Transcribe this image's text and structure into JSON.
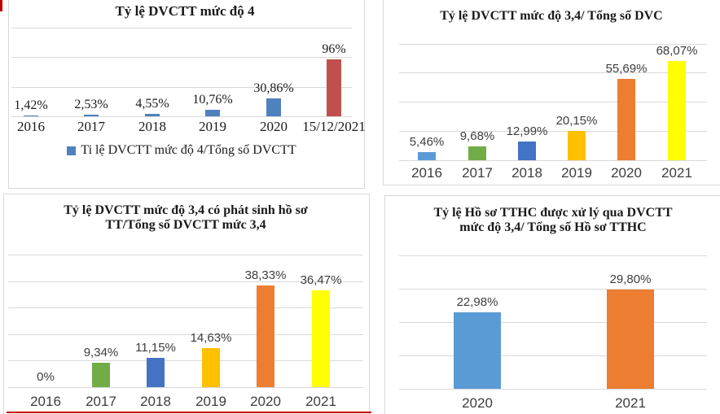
{
  "page": {
    "background": "#ffffff"
  },
  "accents": {
    "top_left_mark_color": "#c00000",
    "bottom_left_line_color": "#c00000"
  },
  "palette": {
    "blue_2007": "#4F81BD",
    "red_2007": "#C0504D",
    "light_blue": "#5B9BD5",
    "green": "#70AD47",
    "blue": "#4472C4",
    "gold": "#FFC000",
    "orange": "#ED7D31",
    "yellow": "#FFFF00",
    "gridline": "#d9d9d9"
  },
  "chart_data": [
    {
      "type": "bar",
      "title": "Tỷ lệ DVCTT mức độ 4",
      "title_lines": [
        "Tỷ lệ DVCTT mức độ 4"
      ],
      "categories": [
        "2016",
        "2017",
        "2018",
        "2019",
        "2020",
        "15/12/2021"
      ],
      "values": [
        1.42,
        2.53,
        4.55,
        10.76,
        30.86,
        96
      ],
      "value_labels": [
        "1,42%",
        "2,53%",
        "4,55%",
        "10,76%",
        "30,86%",
        "96%"
      ],
      "bar_colors": [
        "#4F81BD",
        "#4F81BD",
        "#4F81BD",
        "#4F81BD",
        "#4F81BD",
        "#C0504D"
      ],
      "legend": {
        "label": "Ti lệ DVCTT mức độ 4/Tổng số DVCTT",
        "marker_color": "#4F81BD",
        "position": "bottom"
      },
      "xlabel": "",
      "ylabel": "",
      "ylim": [
        0,
        150
      ],
      "gridlines_pct": [
        0,
        50,
        100,
        150
      ],
      "grid": true,
      "y_axis_visible": false
    },
    {
      "type": "bar",
      "title": "Tỷ lệ DVCTT mức độ 3,4/ Tổng số DVC",
      "title_lines": [
        "Tỷ lệ DVCTT mức độ 3,4/ Tổng số DVC"
      ],
      "categories": [
        "2016",
        "2017",
        "2018",
        "2019",
        "2020",
        "2021"
      ],
      "values": [
        5.46,
        9.68,
        12.99,
        20.15,
        55.69,
        68.07
      ],
      "value_labels": [
        "5,46%",
        "9,68%",
        "12,99%",
        "20,15%",
        "55,69%",
        "68,07%"
      ],
      "bar_colors": [
        "#5B9BD5",
        "#70AD47",
        "#4472C4",
        "#FFC000",
        "#ED7D31",
        "#FFFF00"
      ],
      "xlabel": "",
      "ylabel": "",
      "ylim": [
        0,
        80
      ],
      "gridlines_pct": [
        0,
        20,
        40,
        60,
        80
      ],
      "grid": true,
      "y_axis_visible": false
    },
    {
      "type": "bar",
      "title": "Tỷ lệ DVCTT mức độ 3,4 có phát sinh hồ sơ TT/Tổng số DVCTT mức 3,4",
      "title_lines": [
        "Tỷ lệ DVCTT mức độ 3,4 có phát sinh hồ sơ",
        "TT/Tổng số DVCTT mức 3,4"
      ],
      "categories": [
        "2016",
        "2017",
        "2018",
        "2019",
        "2020",
        "2021"
      ],
      "values": [
        0,
        9.34,
        11.15,
        14.63,
        38.33,
        36.47
      ],
      "value_labels": [
        "0%",
        "9,34%",
        "11,15%",
        "14,63%",
        "38,33%",
        "36,47%"
      ],
      "bar_colors": [
        "#5B9BD5",
        "#70AD47",
        "#4472C4",
        "#FFC000",
        "#ED7D31",
        "#FFFF00"
      ],
      "xlabel": "",
      "ylabel": "",
      "ylim": [
        0,
        50
      ],
      "gridlines_pct": [
        0,
        10,
        20,
        30,
        40,
        50
      ],
      "grid": true,
      "y_axis_visible": false
    },
    {
      "type": "bar",
      "title": "Tỷ lệ Hồ sơ TTHC được xử lý qua DVCTT mức độ 3,4/ Tổng số Hồ sơ TTHC",
      "title_lines": [
        "Tỷ lệ Hồ sơ TTHC được xử lý qua DVCTT",
        "mức độ 3,4/ Tổng số Hồ sơ TTHC"
      ],
      "categories": [
        "2020",
        "2021"
      ],
      "values": [
        22.98,
        29.8
      ],
      "value_labels": [
        "22,98%",
        "29,80%"
      ],
      "bar_colors": [
        "#5B9BD5",
        "#ED7D31"
      ],
      "xlabel": "",
      "ylabel": "",
      "ylim": [
        0,
        40
      ],
      "gridlines_pct": [
        0,
        10,
        20,
        30,
        40
      ],
      "grid": true,
      "y_axis_visible": false
    }
  ]
}
